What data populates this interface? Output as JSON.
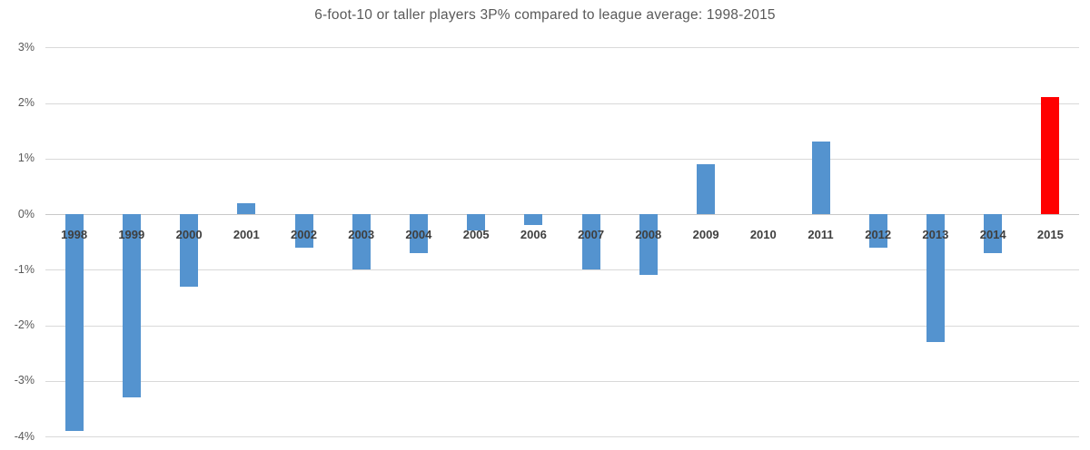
{
  "chart_data": {
    "type": "bar",
    "title": "6-foot-10 or taller players 3P% compared to league average: 1998-2015",
    "xlabel": "",
    "ylabel": "",
    "categories": [
      "1998",
      "1999",
      "2000",
      "2001",
      "2002",
      "2003",
      "2004",
      "2005",
      "2006",
      "2007",
      "2008",
      "2009",
      "2010",
      "2011",
      "2012",
      "2013",
      "2014",
      "2015"
    ],
    "values": [
      -3.9,
      -3.3,
      -1.3,
      0.2,
      -0.6,
      -1.0,
      -0.7,
      -0.3,
      -0.2,
      -1.0,
      -1.1,
      0.9,
      0.0,
      1.3,
      -0.6,
      -2.3,
      -0.7,
      2.1
    ],
    "value_unit": "%",
    "highlight_category": "2015",
    "y_ticks": [
      {
        "label": "3%",
        "value": 3
      },
      {
        "label": "2%",
        "value": 2
      },
      {
        "label": "1%",
        "value": 1
      },
      {
        "label": "0%",
        "value": 0
      },
      {
        "label": "-1%",
        "value": -1
      },
      {
        "label": "-2%",
        "value": -2
      },
      {
        "label": "-3%",
        "value": -3
      },
      {
        "label": "-4%",
        "value": -4
      }
    ],
    "ylim": [
      -4,
      3
    ],
    "grid": true,
    "legend": false
  },
  "colors": {
    "bar_default": "#5493CF",
    "bar_highlight": "#FF0000",
    "gridline": "#d9d9d9",
    "zero_line": "#c9c9c9",
    "title_text": "#595959",
    "ytick_text": "#595959",
    "xtick_text": "#3f3f3f",
    "background": "#ffffff"
  }
}
